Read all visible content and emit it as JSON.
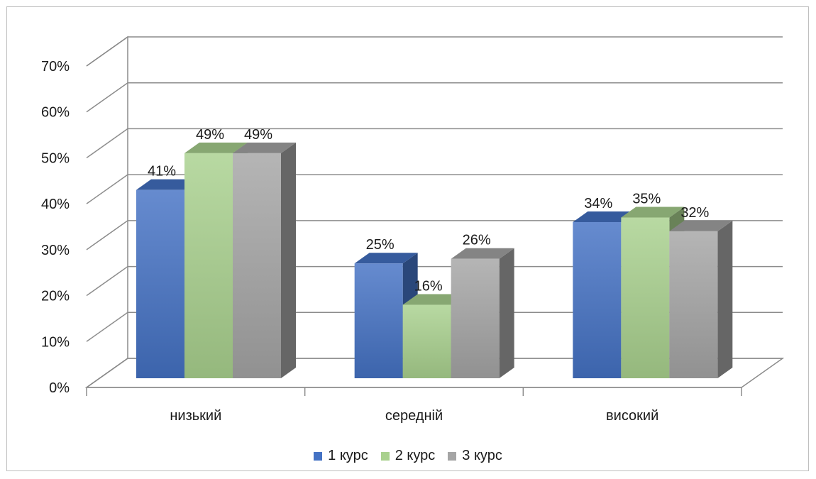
{
  "chart_data": {
    "type": "bar",
    "style": "3d-clustered-column",
    "categories": [
      "низький",
      "середній",
      "високий"
    ],
    "series": [
      {
        "name": "1 курс",
        "values": [
          41,
          25,
          34
        ],
        "labels": [
          "41%",
          "25%",
          "34%"
        ],
        "color": "#4472c4"
      },
      {
        "name": "2 курс",
        "values": [
          49,
          16,
          35
        ],
        "labels": [
          "49%",
          "16%",
          "35%"
        ],
        "color": "#a9d18e"
      },
      {
        "name": "3 курс",
        "values": [
          49,
          26,
          32
        ],
        "labels": [
          "49%",
          "26%",
          "32%"
        ],
        "color": "#a5a5a5"
      }
    ],
    "y_ticks": [
      "0%",
      "10%",
      "20%",
      "30%",
      "40%",
      "50%",
      "60%",
      "70%"
    ],
    "ylim": [
      0,
      70
    ],
    "grid": true,
    "legend_position": "bottom"
  }
}
